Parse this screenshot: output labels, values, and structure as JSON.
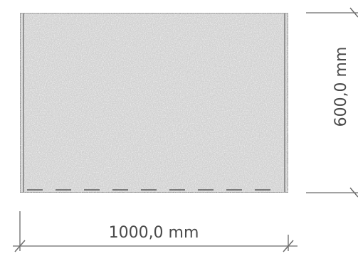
{
  "panel": {
    "width_label": "1000,0 mm",
    "height_label": "600,0 mm",
    "fill_color": "#d0d0d0",
    "edge_color": "#6e6e6e"
  },
  "dimension_line_color": "#6a6a6a"
}
